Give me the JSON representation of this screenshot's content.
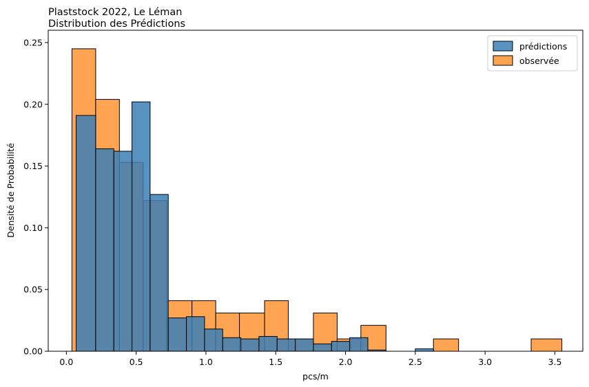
{
  "chart_data": {
    "type": "bar",
    "title": "Plaststock 2022, Le Léman",
    "subtitle": "Distribution des Prédictions",
    "xlabel": "pcs/m",
    "ylabel": "Densité de Probabilité",
    "xlim": [
      -0.13,
      3.7
    ],
    "ylim": [
      0,
      0.26
    ],
    "xticks": [
      {
        "value": 0.0,
        "label": "0.0"
      },
      {
        "value": 0.5,
        "label": "0.5"
      },
      {
        "value": 1.0,
        "label": "1.0"
      },
      {
        "value": 1.5,
        "label": "1.5"
      },
      {
        "value": 2.0,
        "label": "2.0"
      },
      {
        "value": 2.5,
        "label": "2.5"
      },
      {
        "value": 3.0,
        "label": "3.0"
      },
      {
        "value": 3.5,
        "label": "3.5"
      }
    ],
    "yticks": [
      {
        "value": 0.0,
        "label": "0.00"
      },
      {
        "value": 0.05,
        "label": "0.05"
      },
      {
        "value": 0.1,
        "label": "0.10"
      },
      {
        "value": 0.15,
        "label": "0.15"
      },
      {
        "value": 0.2,
        "label": "0.20"
      },
      {
        "value": 0.25,
        "label": "0.25"
      }
    ],
    "legend_position": "top-right",
    "grid": false,
    "series": [
      {
        "name": "observée",
        "color": "#ff9f4a",
        "bins": [
          {
            "x0": 0.04,
            "x1": 0.21,
            "value": 0.245
          },
          {
            "x0": 0.21,
            "x1": 0.38,
            "value": 0.204
          },
          {
            "x0": 0.38,
            "x1": 0.55,
            "value": 0.153
          },
          {
            "x0": 0.55,
            "x1": 0.72,
            "value": 0.122
          },
          {
            "x0": 0.72,
            "x1": 0.9,
            "value": 0.041
          },
          {
            "x0": 0.9,
            "x1": 1.07,
            "value": 0.041
          },
          {
            "x0": 1.07,
            "x1": 1.24,
            "value": 0.031
          },
          {
            "x0": 1.24,
            "x1": 1.42,
            "value": 0.031
          },
          {
            "x0": 1.42,
            "x1": 1.59,
            "value": 0.041
          },
          {
            "x0": 1.59,
            "x1": 1.77,
            "value": 0.01
          },
          {
            "x0": 1.77,
            "x1": 1.94,
            "value": 0.031
          },
          {
            "x0": 1.94,
            "x1": 2.11,
            "value": 0.01
          },
          {
            "x0": 2.11,
            "x1": 2.29,
            "value": 0.021
          },
          {
            "x0": 2.29,
            "x1": 2.46,
            "value": 0.0
          },
          {
            "x0": 2.46,
            "x1": 2.63,
            "value": 0.0
          },
          {
            "x0": 2.63,
            "x1": 2.81,
            "value": 0.01
          },
          {
            "x0": 2.81,
            "x1": 2.98,
            "value": 0.0
          },
          {
            "x0": 2.98,
            "x1": 3.15,
            "value": 0.0
          },
          {
            "x0": 3.15,
            "x1": 3.33,
            "value": 0.0
          },
          {
            "x0": 3.33,
            "x1": 3.55,
            "value": 0.01
          }
        ]
      },
      {
        "name": "prédictions",
        "color": "#3b7fb6",
        "bins": [
          {
            "x0": 0.07,
            "x1": 0.21,
            "value": 0.191
          },
          {
            "x0": 0.21,
            "x1": 0.34,
            "value": 0.164
          },
          {
            "x0": 0.34,
            "x1": 0.47,
            "value": 0.162
          },
          {
            "x0": 0.47,
            "x1": 0.6,
            "value": 0.202
          },
          {
            "x0": 0.6,
            "x1": 0.73,
            "value": 0.127
          },
          {
            "x0": 0.73,
            "x1": 0.86,
            "value": 0.027
          },
          {
            "x0": 0.86,
            "x1": 0.99,
            "value": 0.028
          },
          {
            "x0": 0.99,
            "x1": 1.12,
            "value": 0.018
          },
          {
            "x0": 1.12,
            "x1": 1.25,
            "value": 0.011
          },
          {
            "x0": 1.25,
            "x1": 1.38,
            "value": 0.01
          },
          {
            "x0": 1.38,
            "x1": 1.51,
            "value": 0.012
          },
          {
            "x0": 1.51,
            "x1": 1.64,
            "value": 0.01
          },
          {
            "x0": 1.64,
            "x1": 1.77,
            "value": 0.01
          },
          {
            "x0": 1.77,
            "x1": 1.9,
            "value": 0.006
          },
          {
            "x0": 1.9,
            "x1": 2.03,
            "value": 0.008
          },
          {
            "x0": 2.03,
            "x1": 2.16,
            "value": 0.011
          },
          {
            "x0": 2.16,
            "x1": 2.29,
            "value": 0.001
          },
          {
            "x0": 2.29,
            "x1": 2.5,
            "value": 0.0
          },
          {
            "x0": 2.5,
            "x1": 2.63,
            "value": 0.002
          }
        ]
      }
    ],
    "legend": [
      {
        "name": "prédictions",
        "color": "#3b7fb6"
      },
      {
        "name": "observée",
        "color": "#ff9f4a"
      }
    ]
  }
}
